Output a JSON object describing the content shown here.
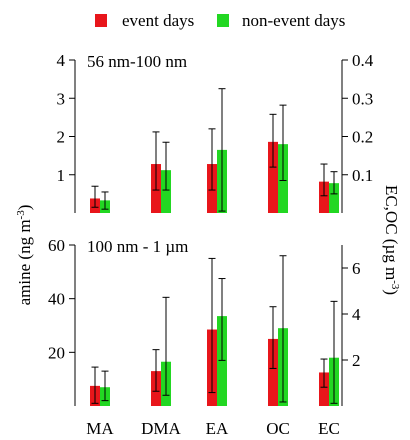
{
  "chart_data": {
    "type": "bar",
    "legend": {
      "placement": "top",
      "entries": [
        {
          "label": "event days",
          "color": "#e8161b"
        },
        {
          "label": "non-event days",
          "color": "#22d722"
        }
      ]
    },
    "categories": [
      "MA",
      "DMA",
      "EA",
      "OC",
      "EC"
    ],
    "y_left_label": "amine (ng m",
    "y_left_label_sup": "-3",
    "y_left_label_end": ")",
    "y_right_label": "EC,OC (µg m",
    "y_right_label_sup": "-3",
    "y_right_label_end": ")",
    "panels": [
      {
        "title": "56 nm-100 nm",
        "ylim_left": [
          0,
          4
        ],
        "yticks_left": [
          1,
          2,
          3,
          4
        ],
        "ylim_right": [
          0,
          0.4
        ],
        "yticks_right": [
          "0.1",
          "0.2",
          "0.3",
          "0.4"
        ],
        "yticks_right_values": [
          0.1,
          0.2,
          0.3,
          0.4
        ],
        "series": [
          {
            "name": "event days",
            "values": [
              0.38,
              1.28,
              1.28,
              1.86,
              0.82
            ],
            "err_low": [
              0.15,
              0.6,
              0.6,
              1.2,
              0.45
            ],
            "err_high": [
              0.7,
              2.12,
              2.2,
              2.58,
              1.28
            ]
          },
          {
            "name": "non-event days",
            "values": [
              0.33,
              1.12,
              1.65,
              1.8,
              0.78
            ],
            "err_low": [
              0.1,
              0.6,
              0.05,
              0.85,
              0.5
            ],
            "err_high": [
              0.55,
              1.85,
              3.25,
              2.82,
              1.08
            ]
          }
        ]
      },
      {
        "title": "100 nm - 1 µm",
        "ylim_left": [
          0,
          60
        ],
        "yticks_left": [
          20,
          40,
          60
        ],
        "ylim_right": [
          0,
          7
        ],
        "yticks_right": [
          "2",
          "4",
          "6"
        ],
        "yticks_right_values": [
          2,
          4,
          6
        ],
        "series": [
          {
            "name": "event days",
            "values": [
              7.5,
              13,
              28.5,
              25,
              12.5
            ],
            "err_low": [
              1,
              5.5,
              5,
              14,
              7
            ],
            "err_high": [
              14.5,
              21,
              55,
              37,
              17.5
            ]
          },
          {
            "name": "non-event days",
            "values": [
              7,
              16.5,
              33.5,
              29,
              18
            ],
            "err_low": [
              2,
              4,
              17,
              1.5,
              1
            ],
            "err_high": [
              13,
              40.5,
              47.5,
              56,
              39
            ]
          }
        ]
      }
    ],
    "grid": false
  }
}
